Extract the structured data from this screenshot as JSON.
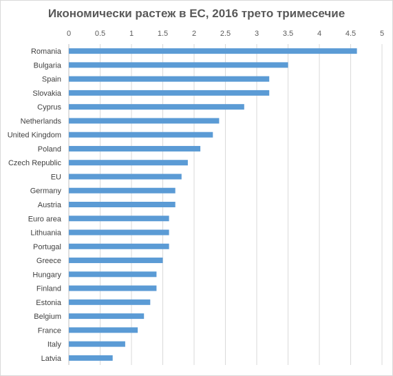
{
  "chart_data": {
    "type": "bar",
    "orientation": "horizontal",
    "title": "Икономически растеж в ЕС, 2016 трето тримесечие",
    "xlabel": "",
    "ylabel": "",
    "xlim": [
      0,
      5
    ],
    "xticks": [
      "0",
      "0.5",
      "1",
      "1.5",
      "2",
      "2.5",
      "3",
      "3.5",
      "4",
      "4.5",
      "5"
    ],
    "grid": true,
    "axis_position": "top",
    "bar_color": "#5b9bd5",
    "categories": [
      "Romania",
      "Bulgaria",
      "Spain",
      "Slovakia",
      "Cyprus",
      "Netherlands",
      "United Kingdom",
      "Poland",
      "Czech Republic",
      "EU",
      "Germany",
      "Austria",
      "Euro area",
      "Lithuania",
      "Portugal",
      "Greece",
      "Hungary",
      "Finland",
      "Estonia",
      "Belgium",
      "France",
      "Italy",
      "Latvia"
    ],
    "values": [
      4.6,
      3.5,
      3.2,
      3.2,
      2.8,
      2.4,
      2.3,
      2.1,
      1.9,
      1.8,
      1.7,
      1.7,
      1.6,
      1.6,
      1.6,
      1.5,
      1.4,
      1.4,
      1.3,
      1.2,
      1.1,
      0.9,
      0.7
    ]
  }
}
